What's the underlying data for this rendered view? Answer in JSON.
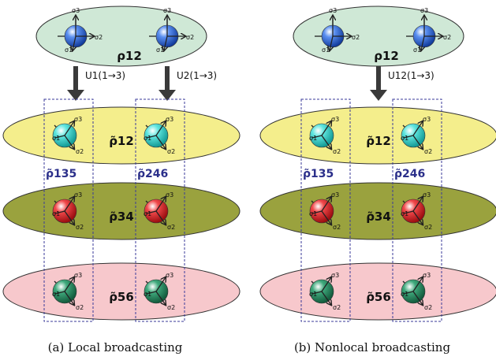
{
  "colors": {
    "top_ellipse": "#cfe8d6",
    "layer1": "#f4ee8c",
    "layer2": "#9aa23e",
    "layer3": "#f7c8cc",
    "blue": "#2a62d6",
    "cyan": "#37d6cf",
    "red": "#e3262a",
    "green": "#2c8a62",
    "box": "#3a3a9a"
  },
  "sigma": {
    "s1": "σ1",
    "s2": "σ2",
    "s3": "σ3"
  },
  "panels": [
    {
      "id": "a",
      "caption": "(a) Local broadcasting",
      "top_rho": "ρ12",
      "ops": [
        "U1(1→3)",
        "U2(1→3)"
      ],
      "rho_12": "ρ̃12",
      "rho_34": "ρ̃34",
      "rho_56": "ρ̃56",
      "box_left": "ρ̃135",
      "box_right": "ρ̃246"
    },
    {
      "id": "b",
      "caption": "(b) Nonlocal broadcasting",
      "top_rho": "ρ12",
      "ops": [
        "U12(1→3)"
      ],
      "rho_12": "ρ̃12",
      "rho_34": "ρ̃34",
      "rho_56": "ρ̃56",
      "box_left": "ρ̃135",
      "box_right": "ρ̃246"
    }
  ]
}
